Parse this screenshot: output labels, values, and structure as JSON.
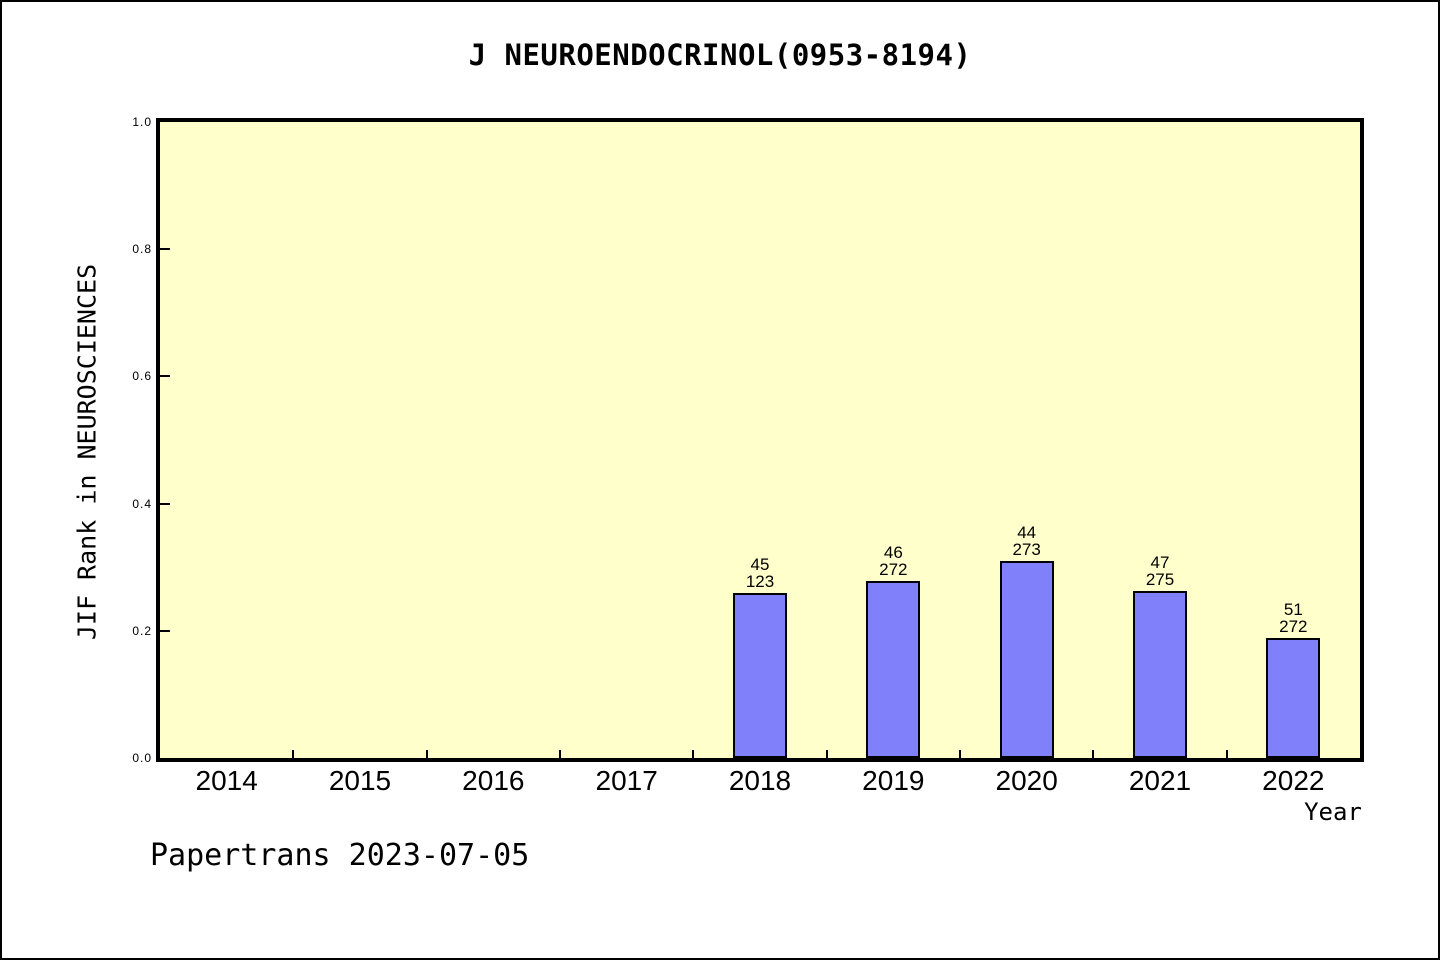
{
  "window": {
    "footer": "Papertrans 2023-07-05"
  },
  "chart_data": {
    "type": "bar",
    "title": "J NEUROENDOCRINOL(0953-8194)",
    "xlabel": "Year",
    "ylabel": "JIF Rank in NEUROSCIENCES",
    "categories": [
      "2014",
      "2015",
      "2016",
      "2017",
      "2018",
      "2019",
      "2020",
      "2021",
      "2022"
    ],
    "ylim": [
      0.0,
      1.0
    ],
    "ytick_labels": [
      "0.0",
      "0.2",
      "0.4",
      "0.6",
      "0.8",
      "1.0"
    ],
    "grid": "off",
    "legend": "none",
    "bars": [
      {
        "category": "2018",
        "rank": "45",
        "total": "123",
        "value": 0.26
      },
      {
        "category": "2019",
        "rank": "46",
        "total": "272",
        "value": 0.278
      },
      {
        "category": "2020",
        "rank": "44",
        "total": "273",
        "value": 0.309
      },
      {
        "category": "2021",
        "rank": "47",
        "total": "275",
        "value": 0.263
      },
      {
        "category": "2022",
        "rank": "51",
        "total": "272",
        "value": 0.188
      }
    ],
    "colors": {
      "bar_fill": "#8080fa",
      "bar_border": "#000000",
      "plot_bg": "#ffffcc",
      "text": "#000000"
    }
  }
}
